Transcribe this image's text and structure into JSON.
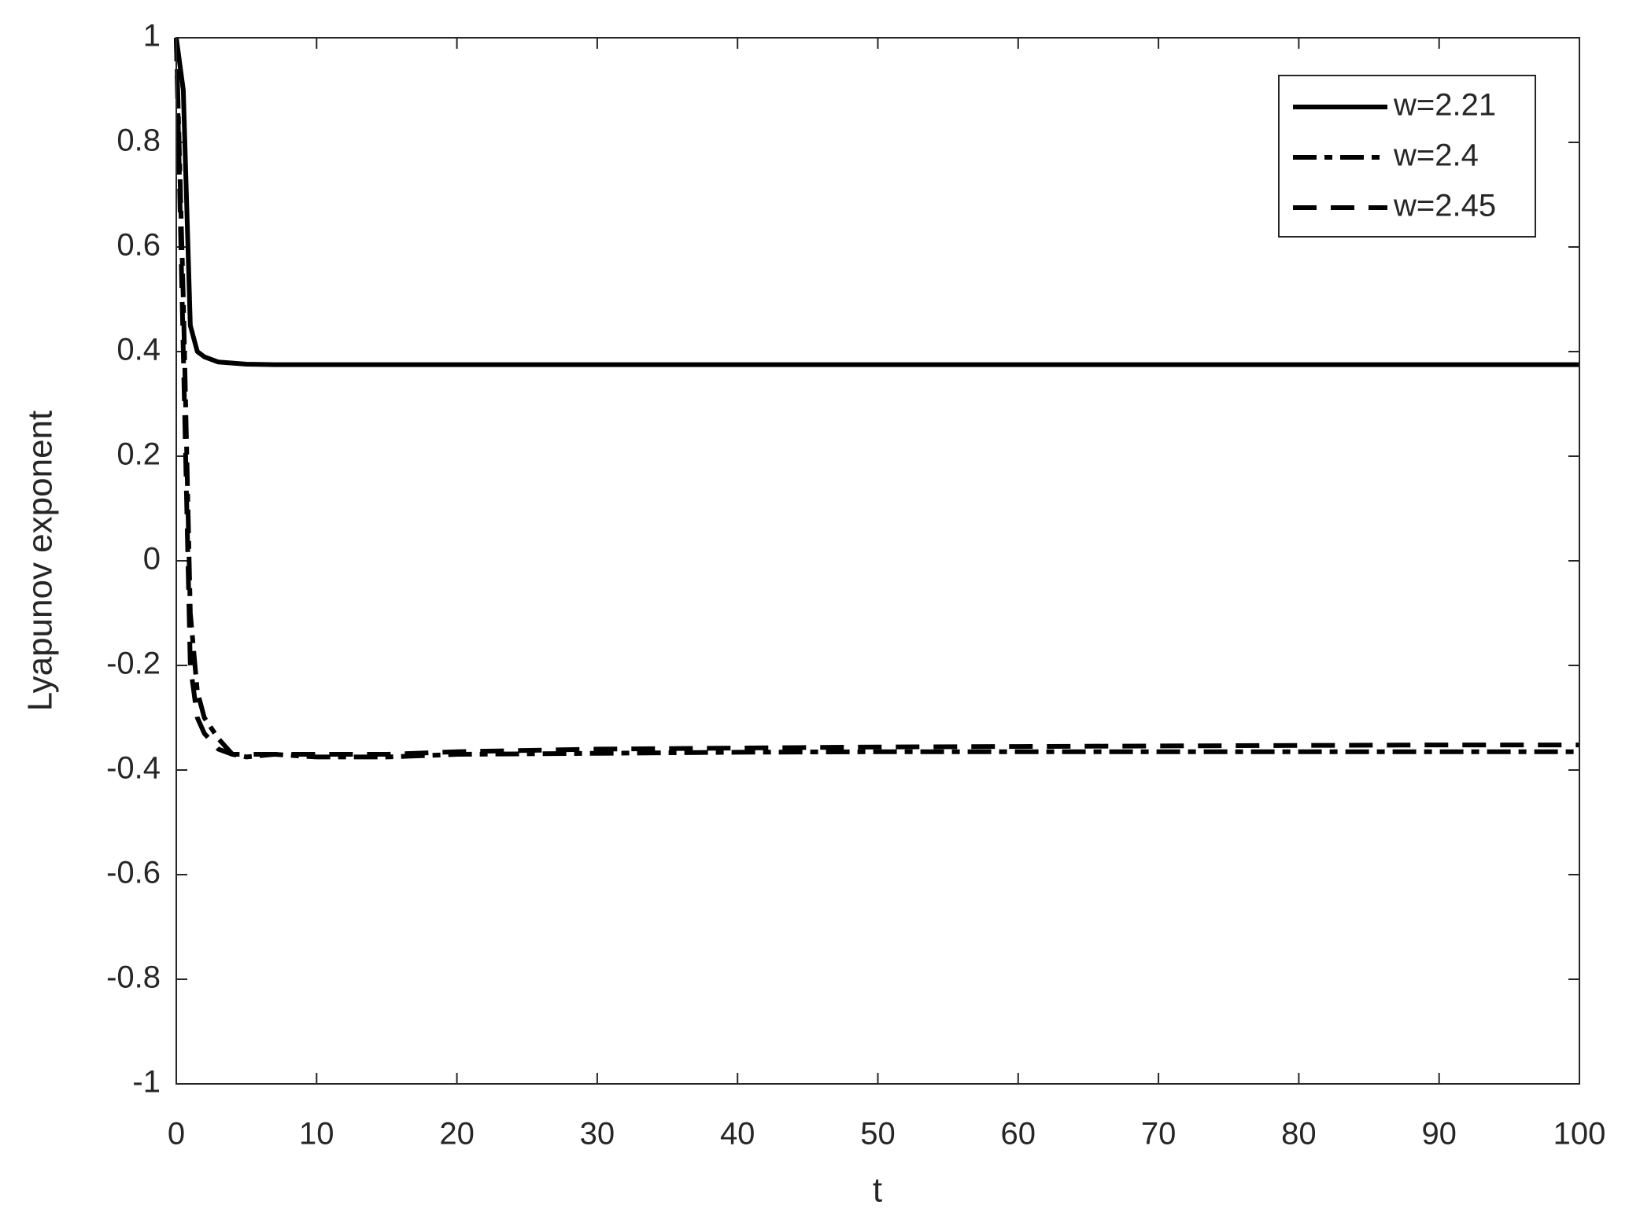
{
  "chart_data": {
    "type": "line",
    "xlabel": "t",
    "ylabel": "Lyapunov exponent",
    "x": [
      0,
      0.5,
      1,
      1.5,
      2,
      3,
      4,
      5,
      7,
      10,
      15,
      20,
      30,
      40,
      50,
      60,
      70,
      80,
      90,
      100
    ],
    "series": [
      {
        "name": "w=2.21",
        "color": "#000000",
        "dash": "solid",
        "values": [
          1,
          0.9,
          0.45,
          0.4,
          0.39,
          0.38,
          0.378,
          0.376,
          0.375,
          0.375,
          0.375,
          0.375,
          0.375,
          0.375,
          0.375,
          0.375,
          0.375,
          0.375,
          0.375,
          0.375
        ]
      },
      {
        "name": "w=2.4",
        "color": "#000000",
        "dash": "dashdot",
        "values": [
          1,
          0.5,
          -0.1,
          -0.25,
          -0.3,
          -0.34,
          -0.37,
          -0.375,
          -0.37,
          -0.375,
          -0.375,
          -0.37,
          -0.368,
          -0.366,
          -0.365,
          -0.365,
          -0.365,
          -0.365,
          -0.365,
          -0.365
        ]
      },
      {
        "name": "w=2.45",
        "color": "#000000",
        "dash": "dashed",
        "values": [
          1,
          0.4,
          -0.2,
          -0.3,
          -0.33,
          -0.36,
          -0.37,
          -0.37,
          -0.37,
          -0.37,
          -0.37,
          -0.365,
          -0.36,
          -0.358,
          -0.356,
          -0.355,
          -0.354,
          -0.353,
          -0.352,
          -0.352
        ]
      }
    ],
    "xlim": [
      0,
      100
    ],
    "xticks": [
      0,
      10,
      20,
      30,
      40,
      50,
      60,
      70,
      80,
      90,
      100
    ],
    "ylim": [
      -1,
      1
    ],
    "yticks": [
      -1,
      -0.8,
      -0.6,
      -0.4,
      -0.2,
      0,
      0.2,
      0.4,
      0.6,
      0.8,
      1
    ],
    "grid": false,
    "legend": "upper right"
  }
}
